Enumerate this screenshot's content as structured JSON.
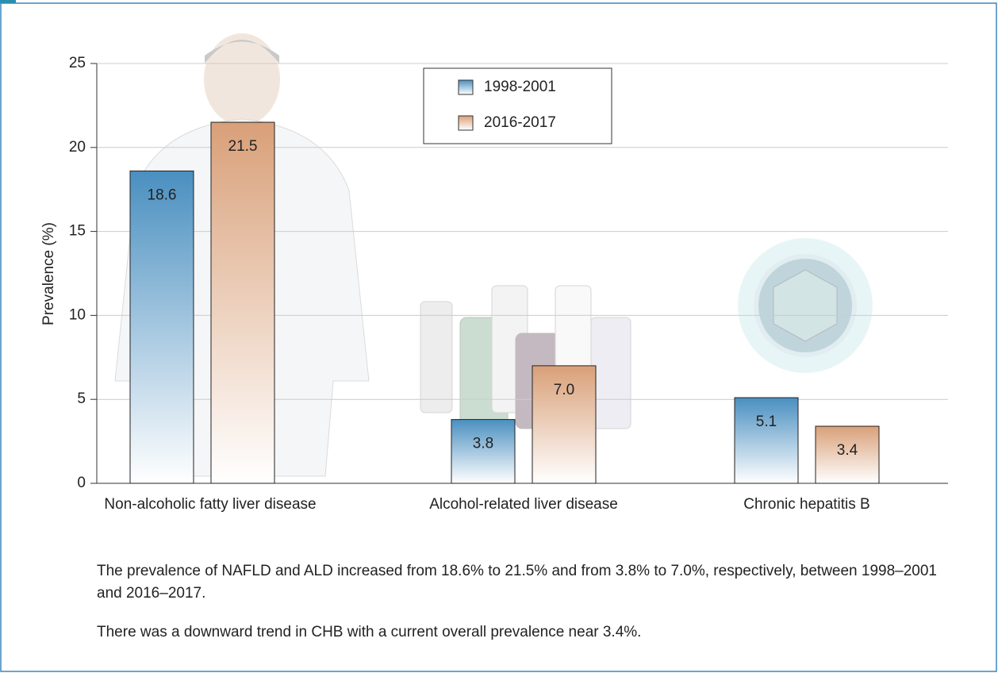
{
  "chart_data": {
    "type": "bar",
    "ylabel": "Prevalence (%)",
    "categories": [
      "Non-alcoholic fatty liver disease",
      "Alcohol-related liver disease",
      "Chronic hepatitis B"
    ],
    "series": [
      {
        "name": "1998-2001",
        "color": "#4a8fc0",
        "values": [
          18.6,
          3.8,
          5.1
        ],
        "value_labels": [
          "18.6",
          "3.8",
          "5.1"
        ]
      },
      {
        "name": "2016-2017",
        "color": "#d9a079",
        "values": [
          21.5,
          7.0,
          3.4
        ],
        "value_labels": [
          "21.5",
          "7.0",
          "3.4"
        ]
      }
    ],
    "ylim": [
      0,
      25
    ],
    "yticks": [
      0,
      5,
      10,
      15,
      20,
      25
    ],
    "grid": true,
    "captions": [
      "The prevalence of NAFLD and ALD increased from 18.6% to 21.5% and from 3.8% to 7.0%, respectively, between 1998–2001 and 2016–2017.",
      "There was a downward trend in CHB with a current overall prevalence near 3.4%."
    ]
  }
}
